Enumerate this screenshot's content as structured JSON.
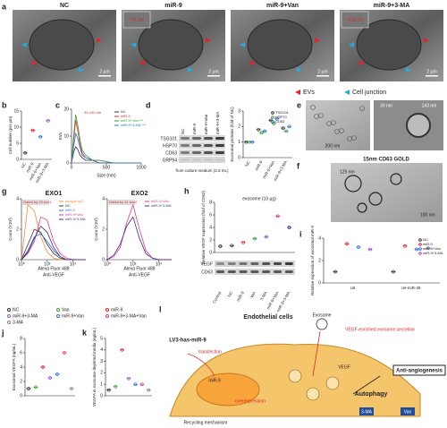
{
  "panel_a": {
    "letter": "a",
    "images": [
      {
        "title": "NC",
        "scale": "2 μm"
      },
      {
        "title": "miR-9",
        "scale": "2 μm",
        "note": "~51 nm"
      },
      {
        "title": "miR-9+Van",
        "scale": "2 μm"
      },
      {
        "title": "miR-9+3-MA",
        "scale": "2 μm",
        "note": "~126 nm"
      }
    ],
    "legend": [
      {
        "name": "EVs",
        "color": "#e0262c"
      },
      {
        "name": "Cell junction",
        "color": "#29a8e0"
      }
    ]
  },
  "panel_b": {
    "type": "dot",
    "letter": "b",
    "ylabel": "Cell number (per μm)",
    "categories": [
      "NC",
      "miR-9",
      "miR-9+Van",
      "miR-9+3-MA"
    ],
    "colors": [
      "#333333",
      "#e0262c",
      "#2b6fd6",
      "#9b4fc9"
    ],
    "values": [
      2,
      9,
      7,
      12
    ],
    "ylim": [
      0,
      15
    ],
    "yticks": [
      0,
      5,
      10,
      15
    ]
  },
  "panel_c": {
    "type": "line",
    "letter": "c",
    "xlabel": "Size (nm)",
    "ylabel": "EVs",
    "annotation": "30-150 nm",
    "x": [
      0,
      30,
      60,
      90,
      120,
      150,
      200,
      300,
      400,
      600,
      800,
      1000
    ],
    "xlim": [
      0,
      1000
    ],
    "xticks": [
      0,
      500,
      1000
    ],
    "ylim": [
      0,
      20
    ],
    "yticks": [
      0,
      10,
      20
    ],
    "series": [
      {
        "name": "NC",
        "color": "#333333",
        "values": [
          0,
          4,
          6,
          5,
          3,
          2,
          1,
          1,
          0,
          0,
          0,
          0
        ]
      },
      {
        "name": "miR-9",
        "color": "#e0262c",
        "values": [
          0,
          8,
          16,
          12,
          7,
          4,
          2,
          1,
          1,
          0,
          0,
          0
        ]
      },
      {
        "name": "miR-9+Van ***",
        "color": "#3aa33a",
        "values": [
          0,
          10,
          18,
          14,
          9,
          5,
          3,
          1,
          1,
          0,
          0,
          0
        ]
      },
      {
        "name": "miR-9+3-MA ***",
        "color": "#2b6fd6",
        "values": [
          0,
          6,
          11,
          9,
          6,
          3,
          2,
          1,
          0,
          0,
          0,
          0
        ]
      }
    ]
  },
  "panel_d": {
    "type": "dot",
    "letter": "d",
    "lanes": [
      "NC",
      "miR-9",
      "miR-9+Van",
      "miR-9+3-MA"
    ],
    "bands": [
      "TSG101",
      "HSP70",
      "CD63",
      "GRP94"
    ],
    "caption": "from culture medium (2.5 mL)",
    "ylabel": "Exosomal proteins (fold of NC)",
    "categories": [
      "NC",
      "miR-9",
      "miR-9+Van",
      "miR-9+3-MA"
    ],
    "ylim": [
      0,
      3
    ],
    "yticks": [
      0,
      1,
      2,
      3
    ],
    "series": [
      {
        "name": "TSG101",
        "color": "#333333",
        "values": [
          1,
          1.8,
          2.4,
          1.9
        ]
      },
      {
        "name": "HSP70",
        "color": "#3aa33a",
        "values": [
          1,
          1.6,
          2.2,
          1.7
        ]
      },
      {
        "name": "CD63",
        "color": "#2b6fd6",
        "values": [
          1,
          1.7,
          2.5,
          2.0
        ]
      }
    ]
  },
  "panel_e": {
    "letter": "e",
    "scales": [
      "200 nm",
      "30 nm",
      "143 nm"
    ]
  },
  "panel_f": {
    "letter": "f",
    "title": "15nm CD63 GOLD",
    "labels": [
      "125 nm",
      "100 nm"
    ]
  },
  "panel_g": {
    "type": "line",
    "letter": "g",
    "xlabel": "Alexa Fluor 488",
    "sublabel": "Anti-VEGF",
    "ylabel": "Count (X10³)",
    "x": [
      0,
      0.5,
      1,
      1.5,
      2,
      2.5,
      3,
      3.5,
      4,
      4.5,
      5
    ],
    "xlim": [
      0,
      5
    ],
    "xticks": [
      {
        "value": 0,
        "label": "10⁰"
      },
      {
        "value": 2,
        "label": "10²"
      },
      {
        "value": 4,
        "label": "10⁴"
      }
    ],
    "ylim": [
      0,
      4
    ],
    "yticks": [
      0,
      2,
      4
    ],
    "plots": [
      {
        "title": "EXO1",
        "gate": "Gated by 10 exo1",
        "series": [
          {
            "name": "Isotype IgG",
            "color": "#f08a3a",
            "values": [
              0,
              3.6,
              3.2,
              1.5,
              0.5,
              0.1,
              0,
              0,
              0,
              0,
              0
            ]
          },
          {
            "name": "NC",
            "color": "#333333",
            "values": [
              0,
              1,
              2,
              1.8,
              1,
              0.4,
              0.1,
              0,
              0,
              0,
              0
            ]
          },
          {
            "name": "miR-9",
            "color": "#2b6fd6",
            "values": [
              0,
              0.6,
              1.5,
              1.7,
              1.2,
              0.6,
              0.2,
              0,
              0,
              0,
              0
            ]
          },
          {
            "name": "miR-9+Van",
            "color": "#e03a8a",
            "values": [
              0,
              0.4,
              1.2,
              2.8,
              2.6,
              1.2,
              0.4,
              0.1,
              0,
              0,
              0
            ]
          },
          {
            "name": "miR-9+3-MA",
            "color": "#3a2b90",
            "values": [
              0,
              0.5,
              1.4,
              2.2,
              1.8,
              0.8,
              0.2,
              0,
              0,
              0,
              0
            ]
          }
        ]
      },
      {
        "title": "EXO2",
        "gate": "Gated by 11 exo2",
        "series": [
          {
            "name": "miR-9+Van",
            "color": "#e03a8a",
            "values": [
              0,
              0.2,
              0.8,
              2.4,
              3.6,
              2,
              0.6,
              0.1,
              0,
              0,
              0
            ]
          },
          {
            "name": "miR-9+3-MA",
            "color": "#3a2b90",
            "values": [
              0,
              0.3,
              1,
              2.2,
              2.8,
              1.4,
              0.4,
              0.1,
              0,
              0,
              0
            ]
          }
        ]
      }
    ]
  },
  "panel_h": {
    "type": "dot",
    "letter": "h",
    "title": "exosome (10 μg)",
    "ylabel": "Relative VEGF expression (fold of CD63)",
    "categories": [
      "Control",
      "NC",
      "miR-9",
      "Van",
      "3-MA",
      "miR-9+Van",
      "miR-9+3-MA"
    ],
    "values": [
      1,
      1.1,
      1.6,
      2.2,
      2.5,
      5.8,
      4
    ],
    "colors": [
      "#333333",
      "#333333",
      "#e0262c",
      "#3aa33a",
      "#9b4fc9",
      "#e03a8a",
      "#3a2b90"
    ],
    "ylim": [
      0,
      8
    ],
    "yticks": [
      0,
      2,
      4,
      6,
      8
    ],
    "bands": [
      "VEGF",
      "CD63"
    ]
  },
  "panel_i": {
    "type": "dot",
    "letter": "i",
    "ylabel": "Relative expression of exosomal miR-9",
    "categories": [
      "U6",
      "cel-miR-39"
    ],
    "ylim": [
      0,
      4
    ],
    "yticks": [
      0,
      2,
      4
    ],
    "series": [
      {
        "name": "NC",
        "color": "#333333",
        "values": [
          1,
          1
        ]
      },
      {
        "name": "miR-9",
        "color": "#e0262c",
        "values": [
          3.5,
          3.3
        ]
      },
      {
        "name": "miR-9+Van",
        "color": "#2b6fd6",
        "values": [
          3.2,
          3
        ]
      },
      {
        "name": "miR-9+3-MA",
        "color": "#9b4fc9",
        "values": [
          3,
          3.1
        ]
      }
    ]
  },
  "legend_jk": [
    {
      "name": "NC",
      "color": "#333333"
    },
    {
      "name": "Van",
      "color": "#3aa33a"
    },
    {
      "name": "miR-9",
      "color": "#e0262c"
    },
    {
      "name": "miR-9+3-MA",
      "color": "#9b4fc9"
    },
    {
      "name": "miR-9+Van",
      "color": "#2b6fd6"
    },
    {
      "name": "miR-9+3-MA+Van",
      "color": "#e03a8a"
    },
    {
      "name": "3-MA",
      "color": "#888888"
    }
  ],
  "panel_j": {
    "type": "dot",
    "letter": "j",
    "ylabel": "Exosomal VEGFA (ng/mL)",
    "values": [
      1,
      1.2,
      4,
      2.5,
      3,
      6,
      1
    ],
    "ylim": [
      0,
      8
    ],
    "yticks": [
      0,
      2,
      4,
      6,
      8
    ]
  },
  "panel_k": {
    "type": "dot",
    "letter": "k",
    "ylabel": "VEGFA in exosome-depleted media (ng/mL)",
    "values": [
      0.5,
      0.8,
      4,
      1.5,
      1,
      1,
      0.5
    ],
    "ylim": [
      0,
      5
    ],
    "yticks": [
      0,
      1,
      2,
      3,
      4,
      5
    ]
  },
  "panel_l": {
    "letter": "l",
    "cell": "Endothelial cells",
    "exosome": "Exosome",
    "secretion": "VEGF-enriched exosome secretion",
    "vector": "LV3-has-miR-9",
    "transfection": "transfection",
    "mir": "miR-9",
    "overexpression": "overexpression",
    "vegf": "VEGF",
    "autophagy": "Autophagy",
    "inhibitor1": "3-MA",
    "inhibitor2": "Van",
    "outcome": "Anti-angiogenesis",
    "recycle": "Recycling mechanism"
  }
}
